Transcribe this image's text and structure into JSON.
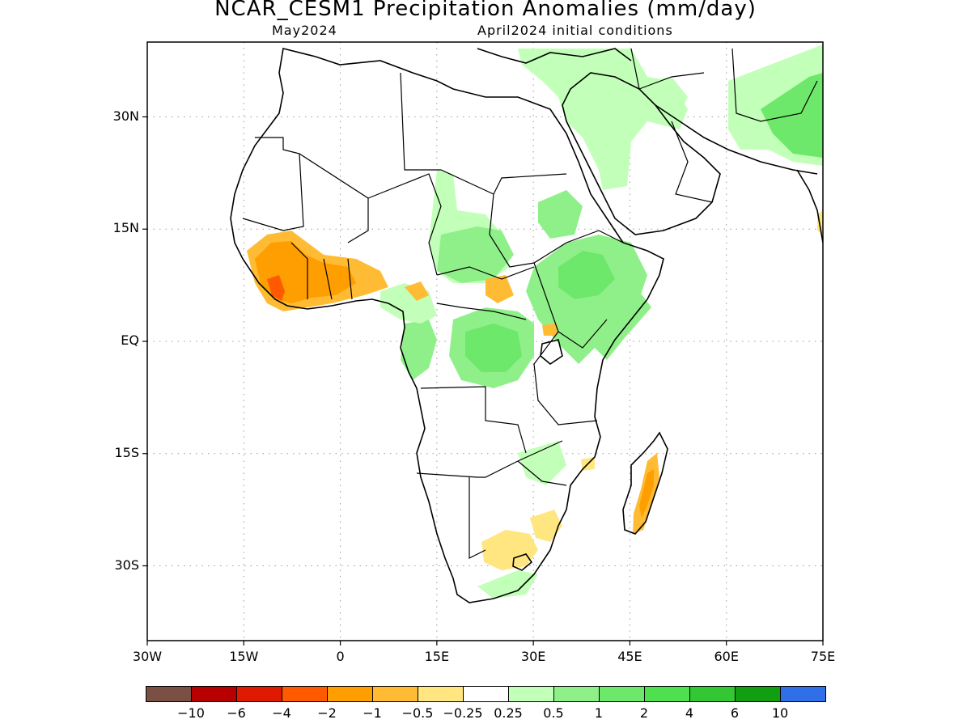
{
  "title": "NCAR_CESM1 Precipitation Anomalies (mm/day)",
  "subtitle_left": "May2024",
  "subtitle_right": "April2024 initial conditions",
  "chart_data": {
    "type": "heatmap",
    "title": "NCAR_CESM1 Precipitation Anomalies (mm/day)",
    "region": "Africa",
    "xlim": [
      -30,
      75
    ],
    "ylim": [
      -40,
      40
    ],
    "x_ticks": [
      {
        "value": -30,
        "label": "30W"
      },
      {
        "value": -15,
        "label": "15W"
      },
      {
        "value": 0,
        "label": "0"
      },
      {
        "value": 15,
        "label": "15E"
      },
      {
        "value": 30,
        "label": "30E"
      },
      {
        "value": 45,
        "label": "45E"
      },
      {
        "value": 60,
        "label": "60E"
      },
      {
        "value": 75,
        "label": "75E"
      }
    ],
    "y_ticks": [
      {
        "value": 30,
        "label": "30N"
      },
      {
        "value": 15,
        "label": "15N"
      },
      {
        "value": 0,
        "label": "EQ"
      },
      {
        "value": -15,
        "label": "15S"
      },
      {
        "value": -30,
        "label": "30S"
      }
    ],
    "grid": true,
    "colorbar": {
      "colors": [
        "#7a5045",
        "#b80000",
        "#e01a00",
        "#ff5a00",
        "#ff9e00",
        "#ffbb33",
        "#ffe680",
        "#ffffff",
        "#c2ffb8",
        "#8ff08a",
        "#6ee86a",
        "#4ee04e",
        "#33c733",
        "#119e11",
        "#2f6fe8"
      ],
      "labels": [
        "−10",
        "−6",
        "−4",
        "−2",
        "−1",
        "−0.5",
        "−0.25",
        "0.25",
        "0.5",
        "1",
        "2",
        "4",
        "6",
        "10"
      ]
    },
    "anomaly_regions": [
      {
        "name": "West Africa (Guinea / Sierra Leone / Liberia / Cote d'Ivoire)",
        "category": "−1 to −2",
        "color": "#ff9e00"
      },
      {
        "name": "Sierra Leone / Liberia coast",
        "category": "−2 to −4",
        "color": "#ff5a00"
      },
      {
        "name": "Coastal West Africa (Ghana / Togo / Benin)",
        "category": "−0.5 to −1",
        "color": "#ffbb33"
      },
      {
        "name": "South Africa interior",
        "category": "−0.25 to −0.5",
        "color": "#ffe680"
      },
      {
        "name": "Eastern Madagascar",
        "category": "−0.5 to −2",
        "color": "#ffbb33"
      },
      {
        "name": "Central Africa / Congo Basin",
        "category": "0.5 to 1",
        "color": "#8ff08a"
      },
      {
        "name": "Ethiopia / Somalia / Kenya",
        "category": "0.5 to 1",
        "color": "#8ff08a"
      },
      {
        "name": "Arabian Peninsula / Middle East",
        "category": "0.25 to 1",
        "color": "#c2ffb8"
      },
      {
        "name": "Iran / Afghanistan / Pakistan",
        "category": "1 to 2",
        "color": "#6ee86a"
      }
    ]
  }
}
